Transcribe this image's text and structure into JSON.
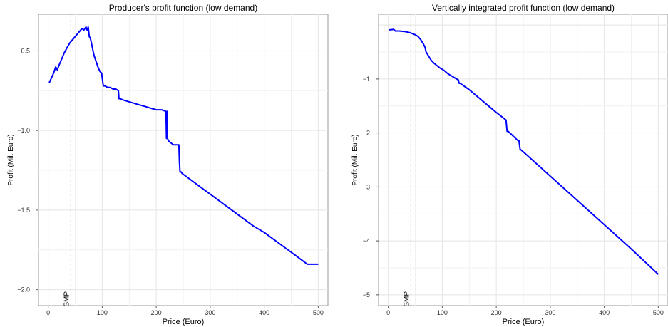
{
  "chart_data": [
    {
      "type": "line",
      "title": "Producer's profit function (low demand)",
      "xlabel": "Price (Euro)",
      "ylabel": "Profit (Mil. Euro)",
      "xlim": [
        -18,
        518
      ],
      "ylim": [
        -2.1,
        -0.27
      ],
      "x_ticks": [
        0,
        100,
        200,
        300,
        400,
        500
      ],
      "y_ticks": [
        -2.0,
        -1.5,
        -1.0,
        -0.5
      ],
      "y_tick_labels": [
        "−2.0",
        "−1.5",
        "−1.0",
        "−0.5"
      ],
      "x_tick_labels": [
        "0",
        "100",
        "200",
        "300",
        "400",
        "500"
      ],
      "grid": true,
      "vline": {
        "x": 42,
        "label": "SMP",
        "style": "dashed"
      },
      "series": [
        {
          "color": "#0000ff",
          "x": [
            2,
            10,
            14,
            17,
            20,
            25,
            30,
            35,
            40,
            45,
            50,
            55,
            60,
            63,
            66,
            68,
            70,
            72,
            74,
            76,
            78,
            80,
            83,
            85,
            87,
            90,
            93,
            96,
            99,
            100,
            102,
            105,
            110,
            115,
            120,
            125,
            130,
            131,
            133,
            140,
            150,
            160,
            170,
            180,
            190,
            200,
            210,
            218,
            219,
            220,
            221,
            222,
            224,
            228,
            232,
            238,
            242,
            243,
            244,
            246,
            248,
            260,
            280,
            300,
            320,
            340,
            360,
            380,
            400,
            420,
            440,
            460,
            480,
            500
          ],
          "y": [
            -0.7,
            -0.64,
            -0.6,
            -0.62,
            -0.59,
            -0.55,
            -0.51,
            -0.48,
            -0.45,
            -0.43,
            -0.41,
            -0.39,
            -0.37,
            -0.36,
            -0.37,
            -0.36,
            -0.35,
            -0.37,
            -0.35,
            -0.41,
            -0.42,
            -0.45,
            -0.5,
            -0.53,
            -0.55,
            -0.58,
            -0.61,
            -0.63,
            -0.64,
            -0.67,
            -0.72,
            -0.72,
            -0.73,
            -0.73,
            -0.74,
            -0.74,
            -0.75,
            -0.8,
            -0.8,
            -0.81,
            -0.82,
            -0.83,
            -0.84,
            -0.85,
            -0.86,
            -0.87,
            -0.87,
            -0.88,
            -1.05,
            -0.88,
            -1.05,
            -1.06,
            -1.07,
            -1.08,
            -1.09,
            -1.09,
            -1.09,
            -1.2,
            -1.26,
            -1.26,
            -1.27,
            -1.3,
            -1.35,
            -1.4,
            -1.45,
            -1.5,
            -1.55,
            -1.6,
            -1.64,
            -1.69,
            -1.74,
            -1.79,
            -1.84,
            -1.84
          ]
        }
      ]
    },
    {
      "type": "line",
      "title": "Vertically integrated profit function (low demand)",
      "xlabel": "Price (Euro)",
      "ylabel": "Profit (Mil. Euro)",
      "xlim": [
        -18,
        518
      ],
      "ylim": [
        -5.2,
        0.2
      ],
      "x_ticks": [
        0,
        100,
        200,
        300,
        400,
        500
      ],
      "y_ticks": [
        -5,
        -4,
        -3,
        -2,
        -1
      ],
      "y_tick_labels": [
        "−5",
        "−4",
        "−3",
        "−2",
        "−1"
      ],
      "x_tick_labels": [
        "0",
        "100",
        "200",
        "300",
        "400",
        "500"
      ],
      "grid": true,
      "vline": {
        "x": 42,
        "label": "SMP",
        "style": "dashed"
      },
      "series": [
        {
          "color": "#0000ff",
          "x": [
            2,
            10,
            13,
            20,
            30,
            40,
            50,
            55,
            60,
            65,
            68,
            70,
            75,
            80,
            85,
            90,
            95,
            100,
            103,
            110,
            120,
            130,
            131,
            133,
            150,
            200,
            218,
            220,
            222,
            240,
            242,
            244,
            250,
            300,
            350,
            400,
            450,
            500
          ],
          "y": [
            -0.09,
            -0.08,
            -0.11,
            -0.11,
            -0.12,
            -0.14,
            -0.18,
            -0.21,
            -0.27,
            -0.35,
            -0.41,
            -0.5,
            -0.58,
            -0.66,
            -0.71,
            -0.75,
            -0.79,
            -0.82,
            -0.84,
            -0.9,
            -0.96,
            -1.02,
            -1.08,
            -1.08,
            -1.2,
            -1.62,
            -1.76,
            -1.97,
            -1.97,
            -2.14,
            -2.14,
            -2.3,
            -2.35,
            -2.8,
            -3.25,
            -3.7,
            -4.15,
            -4.62
          ]
        }
      ]
    }
  ]
}
